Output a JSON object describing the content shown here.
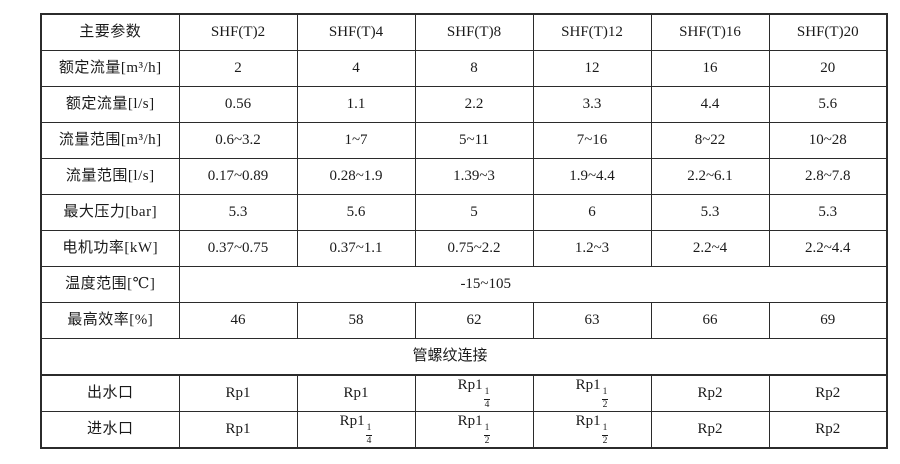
{
  "colors": {
    "background": "#ffffff",
    "border": "#2b2b2b",
    "text": "#1a1a1a"
  },
  "table": {
    "header": {
      "param_label": "主要参数",
      "models": [
        "SHF(T)2",
        "SHF(T)4",
        "SHF(T)8",
        "SHF(T)12",
        "SHF(T)16",
        "SHF(T)20"
      ]
    },
    "rows": [
      {
        "label": "额定流量[m³/h]",
        "values": [
          "2",
          "4",
          "8",
          "12",
          "16",
          "20"
        ]
      },
      {
        "label": "额定流量[l/s]",
        "values": [
          "0.56",
          "1.1",
          "2.2",
          "3.3",
          "4.4",
          "5.6"
        ]
      },
      {
        "label": "流量范围[m³/h]",
        "values": [
          "0.6~3.2",
          "1~7",
          "5~11",
          "7~16",
          "8~22",
          "10~28"
        ]
      },
      {
        "label": "流量范围[l/s]",
        "values": [
          "0.17~0.89",
          "0.28~1.9",
          "1.39~3",
          "1.9~4.4",
          "2.2~6.1",
          "2.8~7.8"
        ]
      },
      {
        "label": "最大压力[bar]",
        "values": [
          "5.3",
          "5.6",
          "5",
          "6",
          "5.3",
          "5.3"
        ]
      },
      {
        "label": "电机功率[kW]",
        "values": [
          "0.37~0.75",
          "0.37~1.1",
          "0.75~2.2",
          "1.2~3",
          "2.2~4",
          "2.2~4.4"
        ]
      },
      {
        "label": "温度范围[℃]",
        "span_value": "-15~105"
      },
      {
        "label": "最高效率[%]",
        "values": [
          "46",
          "58",
          "62",
          "63",
          "66",
          "69"
        ]
      }
    ],
    "section_title": "管螺纹连接",
    "connection_rows": [
      {
        "label": "出水口",
        "values": [
          "Rp1",
          "Rp1",
          "Rp1 1/4",
          "Rp1 1/2",
          "Rp2",
          "Rp2"
        ]
      },
      {
        "label": "进水口",
        "values": [
          "Rp1",
          "Rp1 1/4",
          "Rp1 1/2",
          "Rp1 1/2",
          "Rp2",
          "Rp2"
        ]
      }
    ]
  }
}
